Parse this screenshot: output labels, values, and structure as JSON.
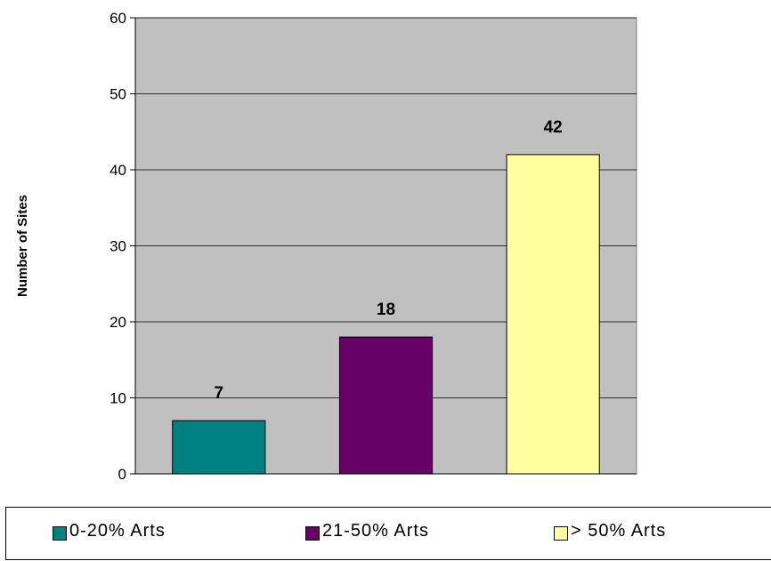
{
  "chart_data": {
    "type": "bar",
    "categories": [
      "0-20% Arts",
      "21-50% Arts",
      "> 50% Arts"
    ],
    "values": [
      7,
      18,
      42
    ],
    "colors": [
      "#008080",
      "#660066",
      "#ffffa0"
    ],
    "plot_background": "#c0c0c0",
    "ylabel": "Number of Sites",
    "xlabel": "",
    "ylim": [
      0,
      60
    ],
    "yticks": [
      0,
      10,
      20,
      30,
      40,
      50,
      60
    ],
    "grid": true,
    "legend_position": "bottom"
  },
  "legend": {
    "items": [
      {
        "label": "0-20% Arts"
      },
      {
        "label": "21-50% Arts"
      },
      {
        "label": "> 50% Arts"
      }
    ]
  }
}
